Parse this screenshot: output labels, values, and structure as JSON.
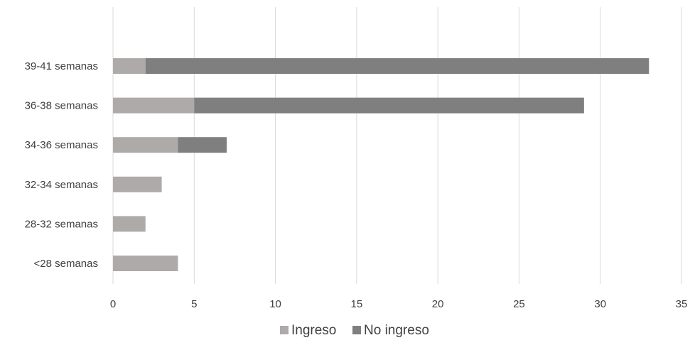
{
  "chart_data": {
    "type": "bar",
    "orientation": "horizontal",
    "stacked": true,
    "categories": [
      "39-41 semanas",
      "36-38 semanas",
      "34-36 semanas",
      "32-34 semanas",
      "28-32 semanas",
      "<28 semanas"
    ],
    "series": [
      {
        "name": "Ingreso",
        "values": [
          2,
          5,
          4,
          3,
          2,
          4
        ],
        "color": "#aeaaaa"
      },
      {
        "name": "No ingreso",
        "values": [
          31,
          24,
          3,
          0,
          0,
          0
        ],
        "color": "#7f7f7f"
      }
    ],
    "xlim": [
      0,
      35
    ],
    "xticks": [
      0,
      5,
      10,
      15,
      20,
      25,
      30,
      35
    ],
    "grid": "vertical",
    "legend": "bottom-center",
    "title": "",
    "xlabel": "",
    "ylabel": ""
  }
}
